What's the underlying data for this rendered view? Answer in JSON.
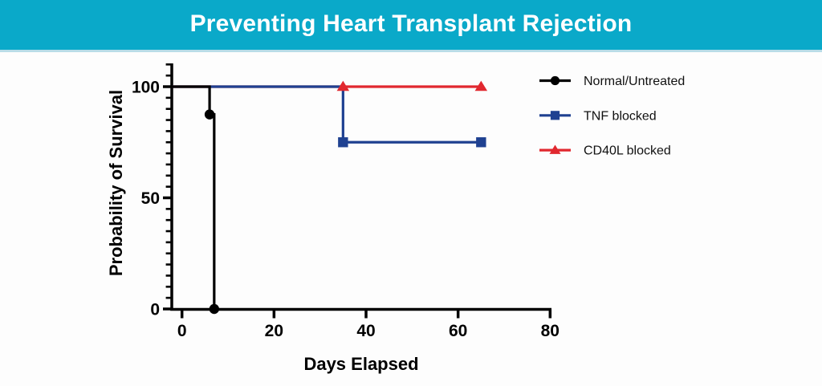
{
  "header": {
    "title": "Preventing Heart Transplant Rejection",
    "background_color": "#0aa9c9",
    "text_color": "#ffffff"
  },
  "chart_data": {
    "type": "line",
    "subtype": "kaplan-meier-step",
    "title": "Preventing Heart Transplant Rejection",
    "xlabel": "Days Elapsed",
    "ylabel": "Probability of Survival",
    "xlim": [
      0,
      80
    ],
    "ylim": [
      0,
      110
    ],
    "x_ticks": [
      0,
      20,
      40,
      60,
      80
    ],
    "y_ticks": [
      0,
      50,
      100
    ],
    "y_minor_tick_step": 5,
    "grid": false,
    "legend_position": "right",
    "axis_color": "#000000",
    "series": [
      {
        "name": "Normal/Untreated",
        "color": "#000000",
        "marker": "circle",
        "points": [
          [
            0,
            100
          ],
          [
            6,
            100
          ],
          [
            6,
            87.5
          ],
          [
            7,
            87.5
          ],
          [
            7,
            0
          ]
        ],
        "marker_points": [
          [
            6,
            87.5
          ],
          [
            7,
            0
          ]
        ]
      },
      {
        "name": "TNF blocked",
        "color": "#1f4191",
        "marker": "square",
        "points": [
          [
            0,
            100
          ],
          [
            35,
            100
          ],
          [
            35,
            75
          ],
          [
            65,
            75
          ]
        ],
        "marker_points": [
          [
            35,
            75
          ],
          [
            65,
            75
          ]
        ]
      },
      {
        "name": "CD40L blocked",
        "color": "#e1282f",
        "marker": "triangle",
        "points": [
          [
            0,
            100
          ],
          [
            65,
            100
          ]
        ],
        "marker_points": [
          [
            35,
            100
          ],
          [
            65,
            100
          ]
        ]
      }
    ]
  }
}
